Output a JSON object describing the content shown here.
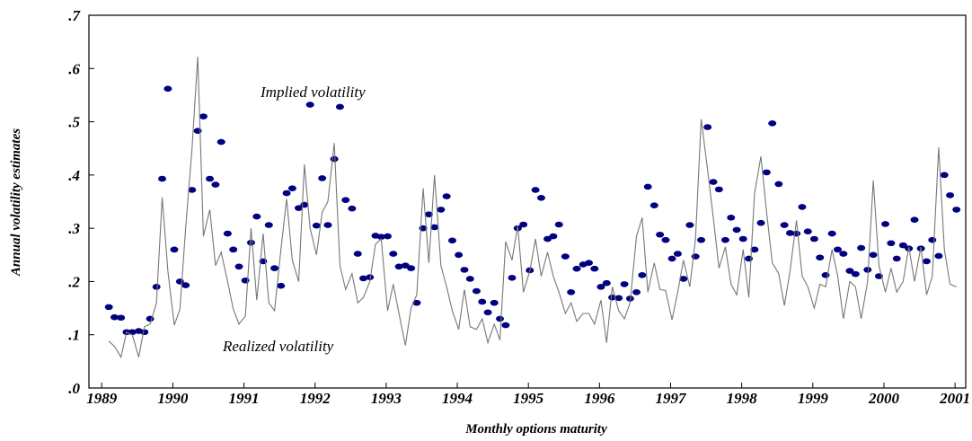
{
  "chart_data": {
    "type": "scatter-line",
    "xlabel": "Monthly options maturity",
    "ylabel": "Annual volatility estimates",
    "xlim": [
      1988.82,
      2001.15
    ],
    "ylim": [
      0,
      0.7
    ],
    "xticks": [
      1989,
      1990,
      1991,
      1992,
      1993,
      1994,
      1995,
      1996,
      1997,
      1998,
      1999,
      2000,
      2001
    ],
    "yticks": [
      {
        "value": 0,
        "label": ".0"
      },
      {
        "value": 0.1,
        "label": ".1"
      },
      {
        "value": 0.2,
        "label": ".2"
      },
      {
        "value": 0.3,
        "label": ".3"
      },
      {
        "value": 0.4,
        "label": ".4"
      },
      {
        "value": 0.5,
        "label": ".5"
      },
      {
        "value": 0.6,
        "label": ".6"
      },
      {
        "value": 0.7,
        "label": ".7"
      }
    ],
    "grid": false,
    "x": [
      1989.1,
      1989.18,
      1989.27,
      1989.35,
      1989.43,
      1989.52,
      1989.6,
      1989.68,
      1989.77,
      1989.85,
      1989.93,
      1990.02,
      1990.1,
      1990.18,
      1990.27,
      1990.35,
      1990.43,
      1990.52,
      1990.6,
      1990.68,
      1990.77,
      1990.85,
      1990.93,
      1991.02,
      1991.1,
      1991.18,
      1991.27,
      1991.35,
      1991.43,
      1991.52,
      1991.6,
      1991.68,
      1991.77,
      1991.85,
      1991.93,
      1992.02,
      1992.1,
      1992.18,
      1992.27,
      1992.35,
      1992.43,
      1992.52,
      1992.6,
      1992.68,
      1992.77,
      1992.85,
      1992.93,
      1993.02,
      1993.1,
      1993.18,
      1993.27,
      1993.35,
      1993.43,
      1993.52,
      1993.6,
      1993.68,
      1993.77,
      1993.85,
      1993.93,
      1994.02,
      1994.1,
      1994.18,
      1994.27,
      1994.35,
      1994.43,
      1994.52,
      1994.6,
      1994.68,
      1994.77,
      1994.85,
      1994.93,
      1995.02,
      1995.1,
      1995.18,
      1995.27,
      1995.35,
      1995.43,
      1995.52,
      1995.6,
      1995.68,
      1995.77,
      1995.85,
      1995.93,
      1996.02,
      1996.1,
      1996.18,
      1996.27,
      1996.35,
      1996.43,
      1996.52,
      1996.6,
      1996.68,
      1996.77,
      1996.85,
      1996.93,
      1997.02,
      1997.1,
      1997.18,
      1997.27,
      1997.35,
      1997.43,
      1997.52,
      1997.6,
      1997.68,
      1997.77,
      1997.85,
      1997.93,
      1998.02,
      1998.1,
      1998.18,
      1998.27,
      1998.35,
      1998.43,
      1998.52,
      1998.6,
      1998.68,
      1998.77,
      1998.85,
      1998.93,
      1999.02,
      1999.1,
      1999.18,
      1999.27,
      1999.35,
      1999.43,
      1999.52,
      1999.6,
      1999.68,
      1999.77,
      1999.85,
      1999.93,
      2000.02,
      2000.1,
      2000.18,
      2000.27,
      2000.35,
      2000.43,
      2000.52,
      2000.6,
      2000.68,
      2000.77,
      2000.85,
      2000.93,
      2001.02
    ],
    "series": [
      {
        "name": "Implied volatility",
        "kind": "points",
        "color": "#000080",
        "values": [
          0.152,
          0.133,
          0.132,
          0.105,
          0.105,
          0.107,
          0.105,
          0.13,
          0.19,
          0.393,
          0.562,
          0.26,
          0.2,
          0.193,
          0.372,
          0.483,
          0.51,
          0.393,
          0.382,
          0.462,
          0.29,
          0.26,
          0.228,
          0.202,
          0.273,
          0.322,
          0.238,
          0.306,
          0.225,
          0.192,
          0.366,
          0.375,
          0.338,
          0.344,
          0.532,
          0.305,
          0.394,
          0.306,
          0.43,
          0.528,
          0.353,
          0.337,
          0.252,
          0.206,
          0.208,
          0.286,
          0.284,
          0.285,
          0.252,
          0.228,
          0.23,
          0.225,
          0.16,
          0.3,
          0.326,
          0.302,
          0.335,
          0.36,
          0.277,
          0.25,
          0.222,
          0.205,
          0.182,
          0.162,
          0.142,
          0.16,
          0.13,
          0.118,
          0.207,
          0.3,
          0.307,
          0.221,
          0.372,
          0.357,
          0.28,
          0.285,
          0.307,
          0.247,
          0.18,
          0.224,
          0.232,
          0.235,
          0.224,
          0.19,
          0.197,
          0.17,
          0.169,
          0.195,
          0.168,
          0.18,
          0.212,
          0.378,
          0.343,
          0.288,
          0.278,
          0.243,
          0.252,
          0.205,
          0.306,
          0.247,
          0.278,
          0.49,
          0.387,
          0.373,
          0.278,
          0.32,
          0.297,
          0.28,
          0.243,
          0.26,
          0.31,
          0.405,
          0.497,
          0.383,
          0.306,
          0.291,
          0.29,
          0.34,
          0.294,
          0.28,
          0.245,
          0.212,
          0.29,
          0.26,
          0.252,
          0.22,
          0.214,
          0.263,
          0.222,
          0.25,
          0.21,
          0.308,
          0.272,
          0.243,
          0.268,
          0.262,
          0.316,
          0.262,
          0.238,
          0.278,
          0.248,
          0.4,
          0.362,
          0.335
        ]
      },
      {
        "name": "Realized volatility",
        "kind": "line",
        "color": "#777777",
        "values": [
          0.088,
          0.078,
          0.058,
          0.105,
          0.1,
          0.058,
          0.115,
          0.12,
          0.16,
          0.358,
          0.22,
          0.118,
          0.148,
          0.3,
          0.45,
          0.622,
          0.285,
          0.335,
          0.23,
          0.255,
          0.2,
          0.148,
          0.12,
          0.135,
          0.3,
          0.165,
          0.29,
          0.16,
          0.145,
          0.26,
          0.355,
          0.24,
          0.2,
          0.42,
          0.3,
          0.25,
          0.33,
          0.35,
          0.46,
          0.23,
          0.185,
          0.215,
          0.16,
          0.17,
          0.2,
          0.27,
          0.28,
          0.145,
          0.195,
          0.14,
          0.08,
          0.15,
          0.175,
          0.375,
          0.235,
          0.4,
          0.23,
          0.19,
          0.145,
          0.11,
          0.185,
          0.115,
          0.11,
          0.13,
          0.085,
          0.12,
          0.09,
          0.275,
          0.24,
          0.305,
          0.18,
          0.22,
          0.28,
          0.21,
          0.255,
          0.21,
          0.18,
          0.14,
          0.16,
          0.125,
          0.14,
          0.14,
          0.12,
          0.165,
          0.085,
          0.19,
          0.145,
          0.13,
          0.16,
          0.285,
          0.32,
          0.18,
          0.235,
          0.185,
          0.183,
          0.128,
          0.18,
          0.24,
          0.19,
          0.28,
          0.505,
          0.41,
          0.32,
          0.225,
          0.265,
          0.195,
          0.175,
          0.26,
          0.17,
          0.365,
          0.435,
          0.33,
          0.235,
          0.215,
          0.155,
          0.22,
          0.315,
          0.21,
          0.19,
          0.15,
          0.195,
          0.19,
          0.26,
          0.21,
          0.13,
          0.2,
          0.19,
          0.13,
          0.2,
          0.39,
          0.23,
          0.18,
          0.225,
          0.18,
          0.2,
          0.265,
          0.2,
          0.265,
          0.175,
          0.21,
          0.452,
          0.26,
          0.195,
          0.19
        ]
      }
    ]
  }
}
